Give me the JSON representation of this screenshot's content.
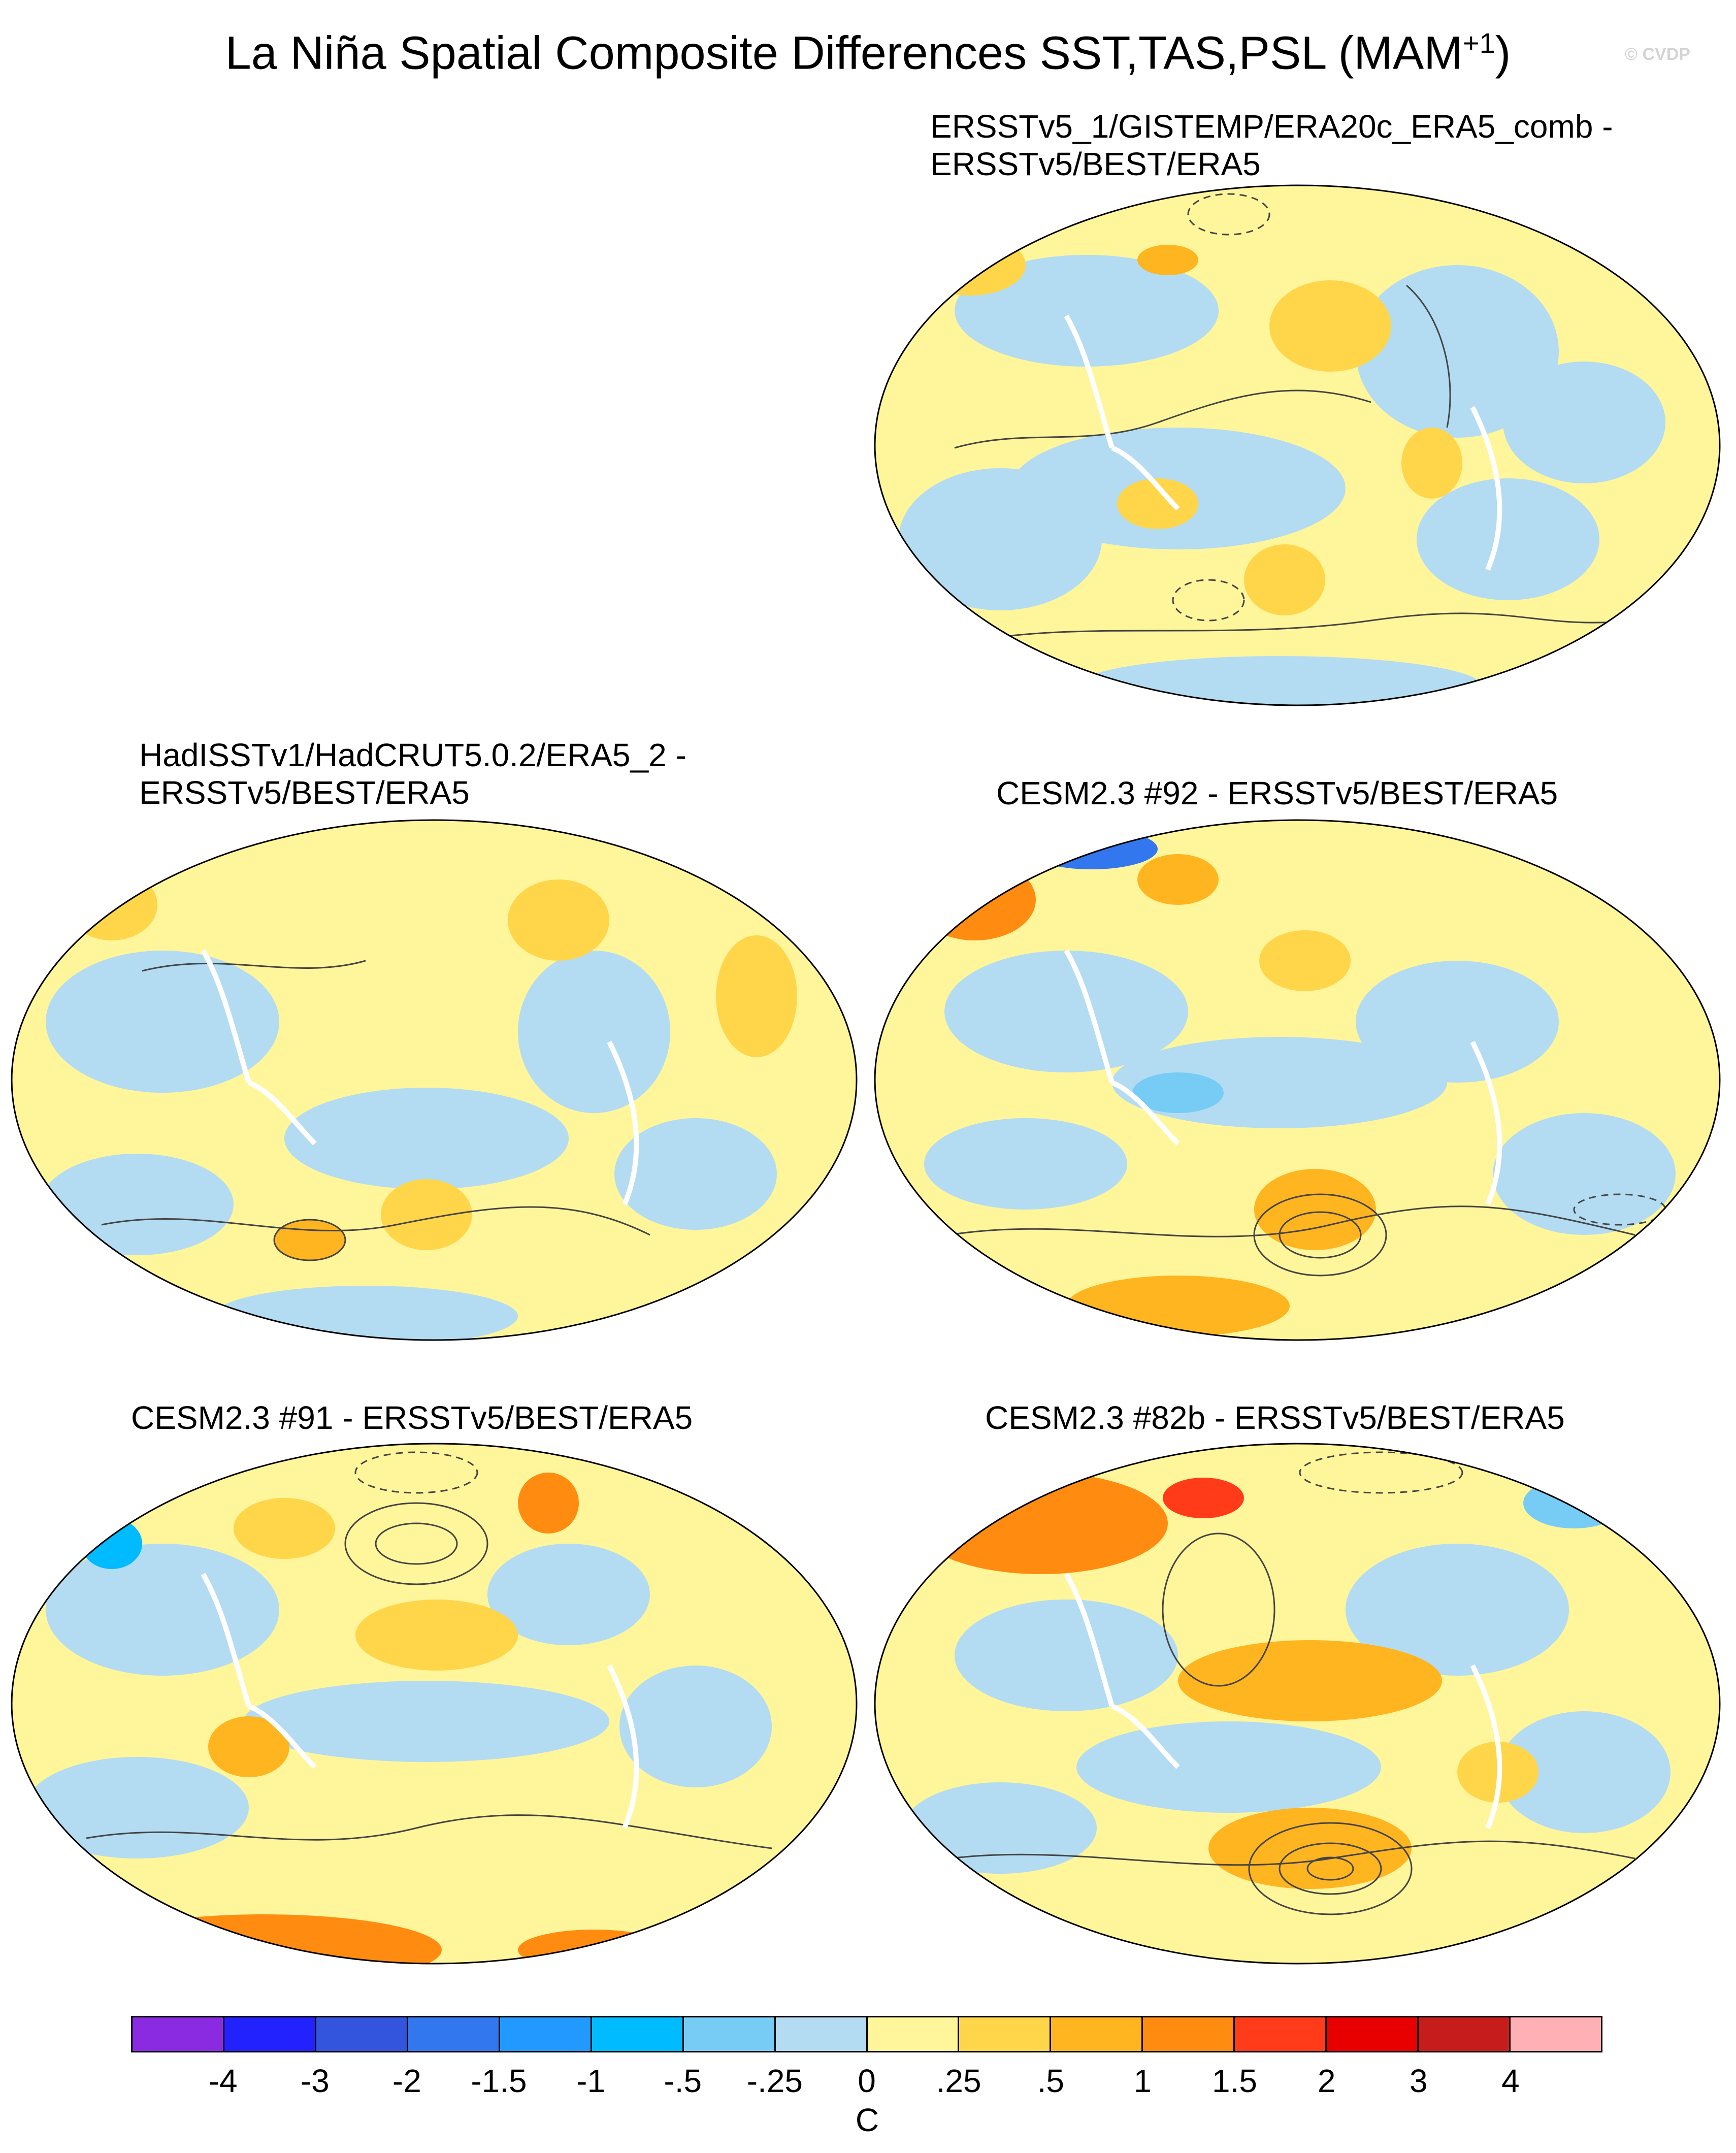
{
  "title": {
    "main": "La Niña Spatial Composite Differences SST,TAS,PSL (MAM",
    "superscript": "+1",
    "close": ")"
  },
  "watermark": "© CVDP",
  "panels": [
    {
      "title_line1": "ERSSTv5_1/GISTEMP/ERA20c_ERA5_comb -",
      "title_line2": "ERSSTv5/BEST/ERA5"
    },
    {
      "title_line1": "HadISSTv1/HadCRUT5.0.2/ERA5_2 -",
      "title_line2": "ERSSTv5/BEST/ERA5"
    },
    {
      "title_line1": "CESM2.3 #92 - ERSSTv5/BEST/ERA5",
      "title_line2": ""
    },
    {
      "title_line1": "CESM2.3 #91 - ERSSTv5/BEST/ERA5",
      "title_line2": ""
    },
    {
      "title_line1": "CESM2.3 #82b - ERSSTv5/BEST/ERA5",
      "title_line2": ""
    }
  ],
  "colorbar": {
    "colors": [
      "#8a2be2",
      "#2222ff",
      "#3355dd",
      "#3377ee",
      "#2299ff",
      "#00bbff",
      "#77ccf5",
      "#b3dcf2",
      "#fff59a",
      "#ffd54a",
      "#ffb520",
      "#ff8c10",
      "#ff3b1a",
      "#e80000",
      "#c61c1c",
      "#ffb0b5"
    ],
    "tick_labels": [
      "-4",
      "-3",
      "-2",
      "-1.5",
      "-1",
      "-.5",
      "-.25",
      "0",
      ".25",
      ".5",
      "1",
      "1.5",
      "2",
      "3",
      "4"
    ],
    "units": "C"
  },
  "palette": {
    "ocean_base": "#b3dcf2",
    "land": "#ffffff",
    "light_blue": "#77ccf5",
    "blue": "#00bbff",
    "yellow": "#fff59a",
    "gold": "#ffd54a",
    "orange": "#ffb520",
    "dark_orange": "#ff8c10",
    "red": "#ff3b1a"
  }
}
